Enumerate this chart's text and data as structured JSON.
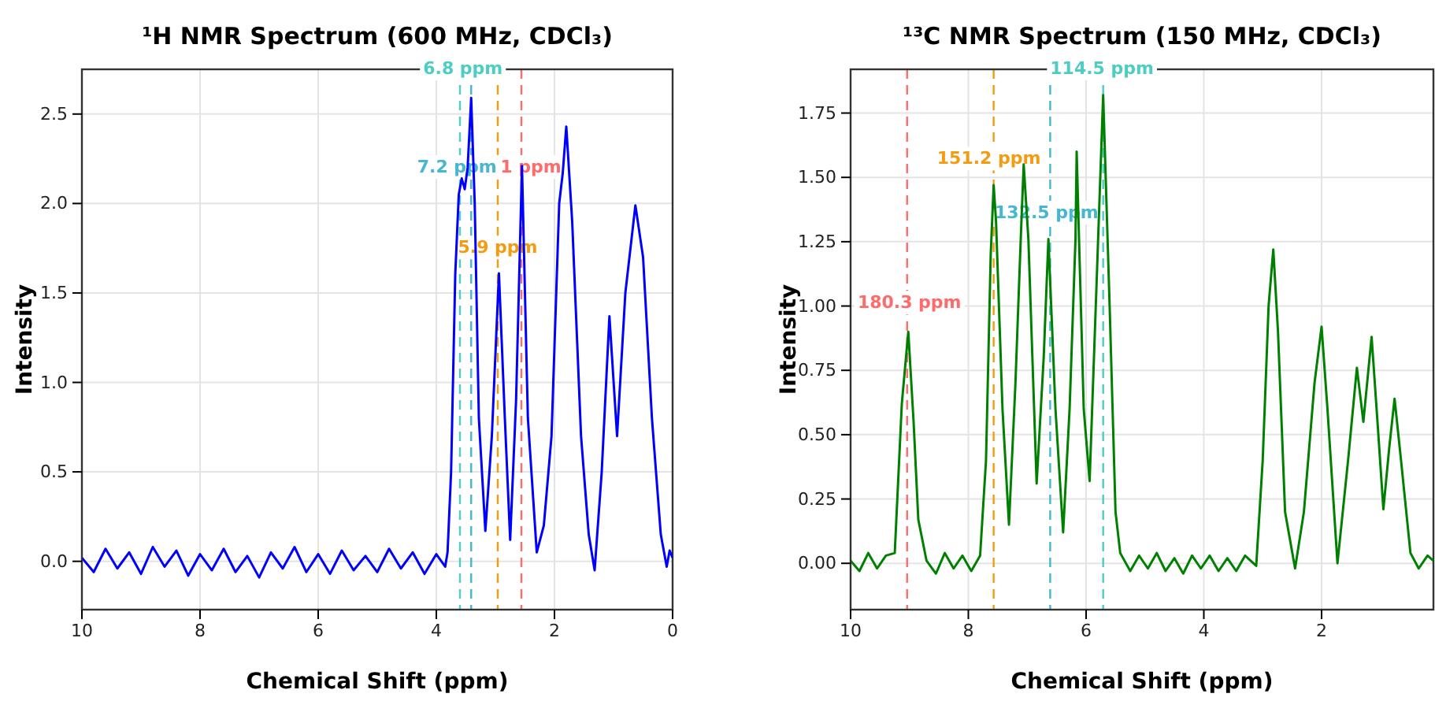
{
  "chart_data": [
    {
      "type": "line",
      "title": "¹H NMR Spectrum (600 MHz, CDCl₃)",
      "xlabel": "Chemical Shift (ppm)",
      "ylabel": "Intensity",
      "xlim": [
        10,
        0
      ],
      "ylim": [
        -0.27,
        2.75
      ],
      "xticks": [
        10,
        8,
        6,
        4,
        2,
        0
      ],
      "yticks": [
        {
          "value": 0,
          "label": "0.0"
        },
        {
          "value": 0.5,
          "label": "0.5"
        },
        {
          "value": 1,
          "label": "1.0"
        },
        {
          "value": 1.5,
          "label": "1.5"
        },
        {
          "value": 2,
          "label": "2.0"
        },
        {
          "value": 2.5,
          "label": "2.5"
        }
      ],
      "grid": true,
      "series": [
        {
          "color": "#0000ff",
          "x": [
            10,
            9.8,
            9.6,
            9.4,
            9.2,
            9.0,
            8.8,
            8.6,
            8.4,
            8.2,
            8.0,
            7.8,
            7.6,
            7.4,
            7.2,
            7.0,
            6.8,
            6.6,
            6.4,
            6.2,
            6.0,
            5.8,
            5.6,
            5.4,
            5.2,
            5.0,
            4.8,
            4.6,
            4.4,
            4.2,
            4.0,
            3.85,
            3.81,
            3.75,
            3.68,
            3.62,
            3.57,
            3.52,
            3.47,
            3.41,
            3.35,
            3.28,
            3.17,
            3.06,
            2.94,
            2.84,
            2.75,
            2.65,
            2.55,
            2.45,
            2.3,
            2.18,
            2.05,
            1.92,
            1.86,
            1.8,
            1.7,
            1.55,
            1.42,
            1.32,
            1.2,
            1.07,
            0.94,
            0.8,
            0.63,
            0.5,
            0.35,
            0.2,
            0.1,
            0.05,
            0
          ],
          "values": [
            0.02,
            -0.06,
            0.07,
            -0.04,
            0.05,
            -0.07,
            0.08,
            -0.03,
            0.06,
            -0.08,
            0.04,
            -0.05,
            0.07,
            -0.06,
            0.03,
            -0.09,
            0.05,
            -0.04,
            0.08,
            -0.06,
            0.04,
            -0.07,
            0.06,
            -0.05,
            0.03,
            -0.06,
            0.07,
            -0.04,
            0.05,
            -0.07,
            0.04,
            -0.03,
            0.05,
            0.5,
            1.6,
            2.05,
            2.14,
            2.08,
            2.2,
            2.59,
            2.0,
            0.8,
            0.17,
            0.7,
            1.61,
            0.8,
            0.12,
            0.9,
            2.21,
            0.8,
            0.05,
            0.2,
            0.7,
            2.0,
            2.17,
            2.43,
            1.9,
            0.7,
            0.15,
            -0.05,
            0.5,
            1.37,
            0.7,
            1.5,
            1.99,
            1.7,
            0.8,
            0.15,
            -0.03,
            0.06,
            0.02
          ]
        }
      ],
      "ref_lines": [
        {
          "axis": "x",
          "value": 3.6,
          "color": "#4ecdc4",
          "line_style": "dashed"
        },
        {
          "axis": "x",
          "value": 3.41,
          "color": "#45b7d1",
          "line_style": "dashed"
        },
        {
          "axis": "x",
          "value": 2.96,
          "color": "#f39c12",
          "line_style": "dashed"
        },
        {
          "axis": "x",
          "value": 2.56,
          "color": "#ff6b6b",
          "line_style": "dashed"
        }
      ],
      "annotations": [
        {
          "text": "6.8 ppm",
          "x": 3.55,
          "y": 2.75
        },
        {
          "text": "7.2 ppm",
          "x": 3.65,
          "y": 2.2
        },
        {
          "text": "5.9 ppm",
          "x": 2.96,
          "y": 1.75
        },
        {
          "text": "1 ppm",
          "x": 2.4,
          "y": 2.2
        }
      ]
    },
    {
      "type": "line",
      "title": "¹³C NMR Spectrum (150 MHz, CDCl₃)",
      "xlabel": "Chemical Shift (ppm)",
      "ylabel": "Intensity",
      "xlim": [
        10,
        0.1
      ],
      "ylim": [
        -0.18,
        1.92
      ],
      "xticks": [
        10,
        8,
        6,
        4,
        2
      ],
      "yticks": [
        {
          "value": 0,
          "label": "0.00"
        },
        {
          "value": 0.25,
          "label": "0.25"
        },
        {
          "value": 0.5,
          "label": "0.50"
        },
        {
          "value": 0.75,
          "label": "0.75"
        },
        {
          "value": 1,
          "label": "1.00"
        },
        {
          "value": 1.25,
          "label": "1.25"
        },
        {
          "value": 1.5,
          "label": "1.50"
        },
        {
          "value": 1.75,
          "label": "1.75"
        }
      ],
      "grid": true,
      "series": [
        {
          "color": "#008000",
          "x": [
            10,
            9.85,
            9.7,
            9.55,
            9.4,
            9.25,
            9.13,
            9.02,
            8.93,
            8.85,
            8.71,
            8.55,
            8.4,
            8.25,
            8.1,
            7.95,
            7.8,
            7.7,
            7.62,
            7.57,
            7.53,
            7.42,
            7.31,
            7.2,
            7.11,
            7.06,
            6.98,
            6.84,
            6.72,
            6.64,
            6.52,
            6.39,
            6.28,
            6.18,
            6.16,
            6.12,
            6.04,
            5.94,
            5.82,
            5.71,
            5.6,
            5.5,
            5.42,
            5.25,
            5.1,
            4.95,
            4.8,
            4.65,
            4.5,
            4.35,
            4.2,
            4.05,
            3.9,
            3.75,
            3.6,
            3.45,
            3.3,
            3.11,
            3.0,
            2.9,
            2.82,
            2.74,
            2.62,
            2.45,
            2.3,
            2.12,
            2.0,
            1.9,
            1.73,
            1.55,
            1.4,
            1.29,
            1.15,
            1.05,
            0.95,
            0.85,
            0.76,
            0.65,
            0.49,
            0.35,
            0.2,
            0.1
          ],
          "values": [
            0.01,
            -0.03,
            0.04,
            -0.02,
            0.03,
            0.04,
            0.62,
            0.9,
            0.55,
            0.17,
            0.01,
            -0.04,
            0.04,
            -0.02,
            0.03,
            -0.03,
            0.03,
            0.4,
            1.2,
            1.47,
            1.33,
            0.6,
            0.15,
            0.7,
            1.26,
            1.55,
            1.26,
            0.31,
            0.8,
            1.26,
            0.6,
            0.12,
            0.6,
            1.26,
            1.6,
            1.26,
            0.6,
            0.32,
            1.1,
            1.82,
            1.0,
            0.2,
            0.04,
            -0.03,
            0.03,
            -0.02,
            0.04,
            -0.03,
            0.02,
            -0.04,
            0.03,
            -0.02,
            0.03,
            -0.03,
            0.02,
            -0.03,
            0.03,
            -0.01,
            0.4,
            1.0,
            1.22,
            0.9,
            0.2,
            -0.02,
            0.2,
            0.7,
            0.92,
            0.6,
            0.0,
            0.4,
            0.76,
            0.55,
            0.88,
            0.55,
            0.21,
            0.45,
            0.64,
            0.4,
            0.04,
            -0.02,
            0.03,
            0.01
          ]
        }
      ],
      "ref_lines": [
        {
          "axis": "x",
          "value": 9.04,
          "color": "#ff6b6b",
          "line_style": "dashed"
        },
        {
          "axis": "x",
          "value": 7.57,
          "color": "#f39c12",
          "line_style": "dashed"
        },
        {
          "axis": "x",
          "value": 6.61,
          "color": "#45b7d1",
          "line_style": "dashed"
        },
        {
          "axis": "x",
          "value": 5.71,
          "color": "#4ecdc4",
          "line_style": "dashed"
        }
      ],
      "annotations": [
        {
          "text": "180.3 ppm",
          "x": 9.0,
          "y": 1.01
        },
        {
          "text": "151.2 ppm",
          "x": 7.65,
          "y": 1.57
        },
        {
          "text": "132.5 ppm",
          "x": 6.67,
          "y": 1.36
        },
        {
          "text": "114.5 ppm",
          "x": 5.73,
          "y": 1.92
        }
      ]
    }
  ]
}
